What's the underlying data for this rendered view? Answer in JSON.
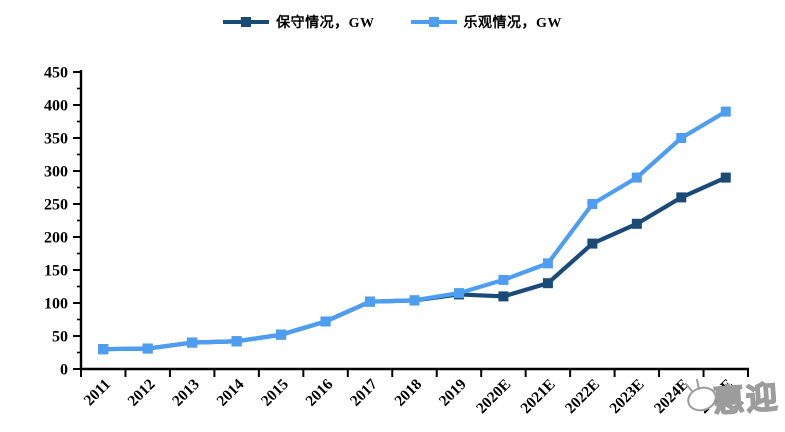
{
  "chart_data": {
    "type": "line",
    "title": "",
    "categories": [
      "2011",
      "2012",
      "2013",
      "2014",
      "2015",
      "2016",
      "2017",
      "2018",
      "2019",
      "2020E",
      "2021E",
      "2022E",
      "2023E",
      "2024E",
      "2025E"
    ],
    "series": [
      {
        "name": "保守情况，GW",
        "color": "#1A4B78",
        "marker": "square",
        "values": [
          30,
          31,
          40,
          42,
          52,
          72,
          102,
          104,
          113,
          110,
          130,
          190,
          220,
          260,
          290
        ]
      },
      {
        "name": "乐观情况，GW",
        "color": "#4D9EF0",
        "marker": "square",
        "values": [
          30,
          31,
          40,
          42,
          52,
          72,
          102,
          104,
          115,
          135,
          160,
          250,
          290,
          350,
          390
        ]
      }
    ],
    "xlabel": "",
    "ylabel": "",
    "ylim": [
      0,
      450
    ],
    "ytick_step": 50,
    "yminor_step": 25,
    "yticks": [
      0,
      50,
      100,
      150,
      200,
      250,
      300,
      350,
      400,
      450
    ],
    "grid": false,
    "legend_position": "top-center",
    "axis_color": "#000000",
    "tick_label_color": "#000000"
  },
  "watermark": {
    "text": "惠迎",
    "color": "#9C9C9C"
  }
}
